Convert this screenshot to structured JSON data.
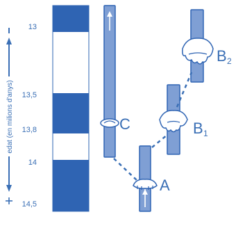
{
  "colors": {
    "brand_blue": "#2f64b3",
    "rod_fill": "#7f9fd4",
    "rod_stroke": "#2f64b3",
    "text_blue": "#3a6fb5"
  },
  "axis": {
    "label": "edat (en milions d'anys)",
    "ticks": [
      "13",
      "13,5",
      "13,8",
      "14",
      "14,5"
    ]
  },
  "strata": {
    "bands": [
      "dark",
      "light",
      "dark",
      "light",
      "dark"
    ]
  },
  "specimens": {
    "a": {
      "letter": "A",
      "subscript": ""
    },
    "b1": {
      "letter": "B",
      "subscript": "1"
    },
    "b2": {
      "letter": "B",
      "subscript": "2"
    },
    "c": {
      "letter": "C",
      "subscript": ""
    }
  },
  "icons": {
    "up_arrow_top": "arrow-up-icon",
    "down_arrow_bottom": "arrow-down-icon",
    "tooth": "tooth-icon"
  }
}
